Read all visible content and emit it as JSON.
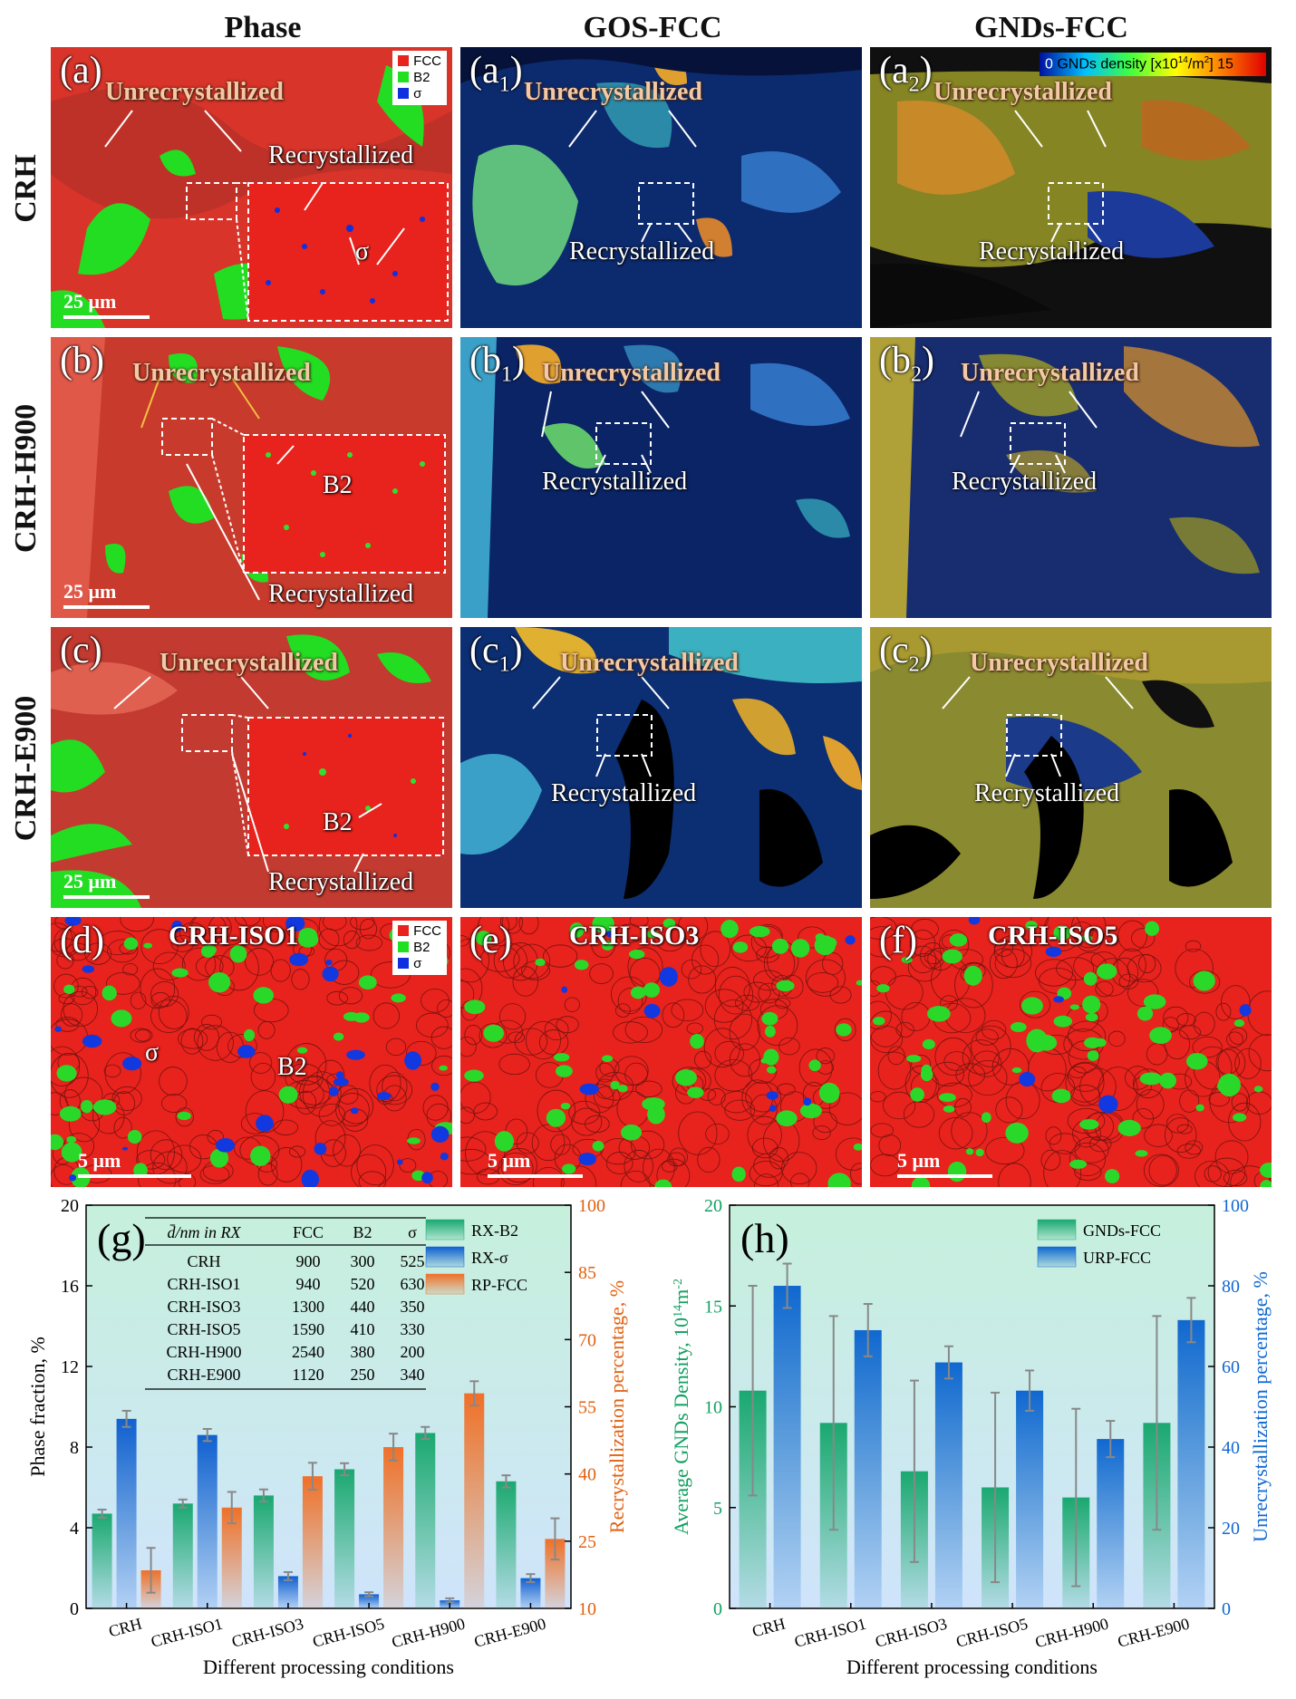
{
  "column_headers": [
    "Phase",
    "GOS-FCC",
    "GNDs-FCC"
  ],
  "row_headers": [
    "CRH",
    "CRH-H900",
    "CRH-E900"
  ],
  "phase_legend": [
    "FCC",
    "B2",
    "σ"
  ],
  "phase_colors": {
    "FCC": "#e8221c",
    "B2": "#20e020",
    "sigma": "#1030e0"
  },
  "gnd_colorbar": {
    "min": "0",
    "label": "GNDs density [x10",
    "sup": "14",
    "unit": "/m",
    "sup2": "2",
    "end": "]",
    "max": "15"
  },
  "annotations": {
    "unrecrystallized": "Unrecrystallized",
    "recrystallized": "Recrystallized",
    "sigma": "σ",
    "b2": "B2"
  },
  "scalebars": {
    "large": "25 μm",
    "small": "5 μm"
  },
  "panels": {
    "a": {
      "label": "(a)"
    },
    "a1": {
      "label": "(a",
      "sub": "1",
      "end": ")"
    },
    "a2": {
      "label": "(a",
      "sub": "2",
      "end": ")"
    },
    "b": {
      "label": "(b)"
    },
    "b1": {
      "label": "(b",
      "sub": "1",
      "end": ")"
    },
    "b2": {
      "label": "(b",
      "sub": "2",
      "end": ")"
    },
    "c": {
      "label": "(c)"
    },
    "c1": {
      "label": "(c",
      "sub": "1",
      "end": ")"
    },
    "c2": {
      "label": "(c",
      "sub": "2",
      "end": ")"
    },
    "d": {
      "label": "(d)",
      "title": "CRH-ISO1"
    },
    "e": {
      "label": "(e)",
      "title": "CRH-ISO3"
    },
    "f": {
      "label": "(f)",
      "title": "CRH-ISO5"
    }
  },
  "chart_data": [
    {
      "type": "bar",
      "panel_label": "(g)",
      "categories": [
        "CRH",
        "CRH-ISO1",
        "CRH-ISO3",
        "CRH-ISO5",
        "CRH-H900",
        "CRH-E900"
      ],
      "xlabel": "Different processing conditions",
      "ylabel": "Phase fraction, %",
      "y2label": "Recrystallization percentage, %",
      "ylim": [
        0,
        20
      ],
      "yticks": [
        0,
        4,
        8,
        12,
        16,
        20
      ],
      "y2lim": [
        10,
        100
      ],
      "y2ticks": [
        10,
        25,
        40,
        55,
        70,
        85,
        100
      ],
      "series": [
        {
          "name": "RX-B2",
          "axis": "left",
          "color": "#1aa870",
          "values": [
            4.7,
            5.2,
            5.6,
            6.9,
            8.7,
            6.3
          ],
          "errors": [
            0.2,
            0.2,
            0.3,
            0.3,
            0.3,
            0.3
          ]
        },
        {
          "name": "RX-σ",
          "axis": "left",
          "color": "#1060d0",
          "values": [
            9.4,
            8.6,
            1.6,
            0.7,
            0.4,
            1.5
          ],
          "errors": [
            0.4,
            0.3,
            0.2,
            0.1,
            0.1,
            0.2
          ]
        },
        {
          "name": "RP-FCC",
          "axis": "right",
          "color": "#f07028",
          "values": [
            18.5,
            32.5,
            39.5,
            46,
            58,
            25.5
          ],
          "errors": [
            5,
            3.5,
            3,
            3,
            2.7,
            4.6
          ]
        }
      ],
      "inset_table": {
        "header": [
          "d̄/nm in RX",
          "FCC",
          "B2",
          "σ"
        ],
        "rows": [
          [
            "CRH",
            "900",
            "300",
            "525"
          ],
          [
            "CRH-ISO1",
            "940",
            "520",
            "630"
          ],
          [
            "CRH-ISO3",
            "1300",
            "440",
            "350"
          ],
          [
            "CRH-ISO5",
            "1590",
            "410",
            "330"
          ],
          [
            "CRH-H900",
            "2540",
            "380",
            "200"
          ],
          [
            "CRH-E900",
            "1120",
            "250",
            "340"
          ]
        ]
      }
    },
    {
      "type": "bar",
      "panel_label": "(h)",
      "categories": [
        "CRH",
        "CRH-ISO1",
        "CRH-ISO3",
        "CRH-ISO5",
        "CRH-H900",
        "CRH-E900"
      ],
      "xlabel": "Different processing conditions",
      "ylabel": "Average GNDs Density, 10",
      "ylabel_sup": "14",
      "ylabel_end": "m",
      "ylabel_sup2": "-2",
      "y2label": "Unrecrystallization percentage, %",
      "ylim": [
        0,
        20
      ],
      "yticks": [
        0,
        5,
        10,
        15,
        20
      ],
      "y2lim": [
        0,
        100
      ],
      "y2ticks": [
        0,
        20,
        40,
        60,
        80,
        100
      ],
      "series": [
        {
          "name": "GNDs-FCC",
          "axis": "left",
          "color": "#1aa870",
          "values": [
            10.8,
            9.2,
            6.8,
            6.0,
            5.5,
            9.2
          ],
          "errors": [
            5.2,
            5.3,
            4.5,
            4.7,
            4.4,
            5.3
          ]
        },
        {
          "name": "URP-FCC",
          "axis": "right",
          "color": "#1068d0",
          "values": [
            80,
            69,
            61,
            54,
            42,
            71.5
          ],
          "errors": [
            5.5,
            6.5,
            4,
            5,
            4.5,
            5.5
          ]
        }
      ]
    }
  ]
}
